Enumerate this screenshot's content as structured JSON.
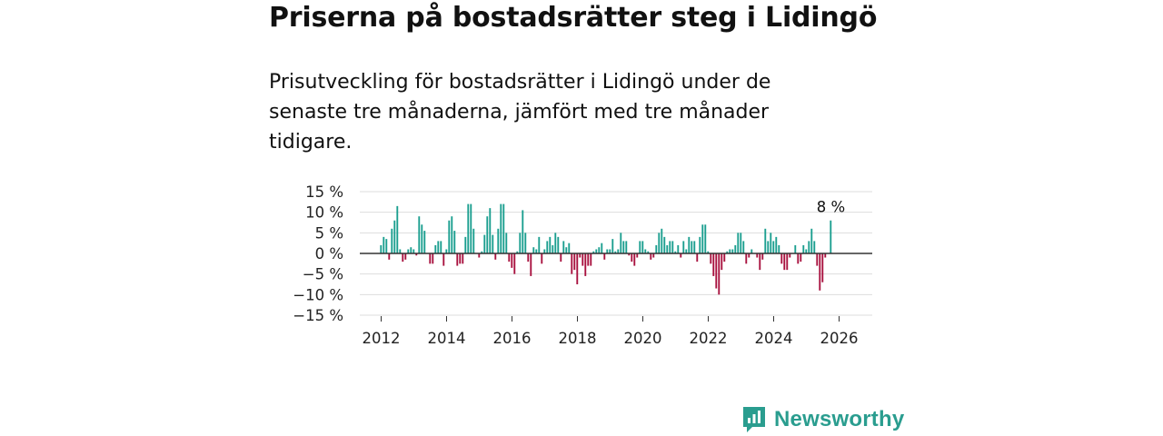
{
  "title": "Priserna på bostadsrätter steg i Lidingö",
  "subtitle": "Prisutveckling för bostadsrätter i Lidingö under de senaste tre månaderna, jämfört med tre månader tidigare.",
  "brand": "Newsworthy",
  "colors": {
    "positive": "#1a9e8f",
    "negative": "#a8103e",
    "zero_line": "#333333",
    "grid": "#dddddd",
    "brand": "#2a9d8f"
  },
  "chart_data": {
    "type": "bar",
    "title": "Priserna på bostadsrätter steg i Lidingö",
    "xlabel": "",
    "ylabel": "",
    "ylim": [
      -15,
      15
    ],
    "xlim": [
      2011.33,
      2026.92
    ],
    "y_ticks": [
      15,
      10,
      5,
      0,
      -5,
      -10,
      -15
    ],
    "y_tick_labels": [
      "15 %",
      "10 %",
      "5 %",
      "0 %",
      "−5 %",
      "−10 %",
      "−15 %"
    ],
    "x_ticks": [
      2012,
      2014,
      2016,
      2018,
      2020,
      2022,
      2024,
      2026
    ],
    "x_tick_labels": [
      "2012",
      "2014",
      "2016",
      "2018",
      "2020",
      "2022",
      "2024",
      "2026"
    ],
    "start_year": 2012,
    "start_month": 1,
    "unit": "%",
    "annotation": {
      "label": "8 %",
      "value": 8
    },
    "values": [
      2,
      4,
      3.5,
      -1.5,
      6,
      8,
      11.5,
      1,
      -2,
      -1.5,
      1,
      1.5,
      1,
      -0.5,
      9,
      7,
      5.5,
      0,
      -2.5,
      -2.5,
      2,
      3,
      3,
      -3,
      1,
      8,
      9,
      5.5,
      -3,
      -2.5,
      -2.5,
      4,
      12,
      12,
      6,
      0,
      -1,
      0.5,
      4.5,
      9,
      11,
      4.5,
      -1.5,
      6,
      12,
      12,
      5,
      -2,
      -3.5,
      -5,
      0.5,
      5,
      10.5,
      5,
      -2,
      -5.5,
      1.5,
      1,
      4,
      -2.5,
      1,
      3,
      4,
      2,
      5,
      4,
      -2,
      3,
      1.5,
      2.5,
      -5,
      -4,
      -7.5,
      -1,
      -3,
      -5.5,
      -3,
      -3,
      0.5,
      1,
      1.5,
      2.5,
      -1.5,
      1,
      1,
      3.5,
      0.5,
      1,
      5,
      3,
      3,
      -0.5,
      -2,
      -3,
      -1,
      3,
      3,
      1,
      0.5,
      -1.5,
      -1,
      2,
      5,
      6,
      4,
      2,
      3,
      3,
      0.5,
      2,
      -1,
      3,
      1,
      4,
      3,
      3,
      -2,
      4,
      7,
      7,
      0.5,
      -2.5,
      -5.5,
      -8.5,
      -10,
      -4,
      -2,
      0.5,
      1,
      1,
      2,
      5,
      5,
      3,
      -2.5,
      -1,
      1,
      0,
      -1,
      -4,
      -1.5,
      6,
      3,
      5,
      3,
      4,
      2,
      -2.5,
      -4,
      -4,
      -1,
      0,
      2,
      -2.5,
      -2,
      2,
      1,
      3,
      6,
      3,
      -3,
      -9,
      -7,
      -1,
      0,
      8
    ]
  }
}
